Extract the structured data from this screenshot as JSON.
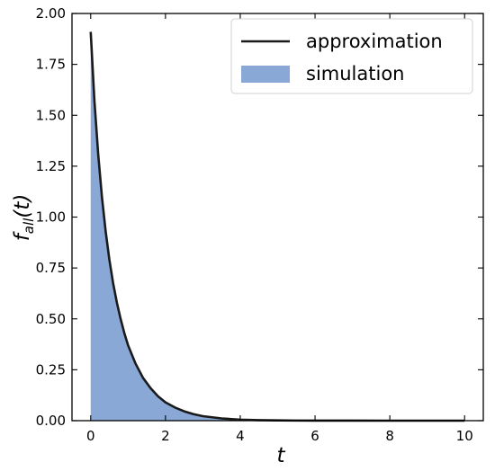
{
  "chart_data": {
    "type": "area",
    "xlabel": "t",
    "ylabel": {
      "main": "f",
      "sub": "all",
      "rest": "(t)"
    },
    "xlim": [
      -0.5,
      10.5
    ],
    "ylim": [
      0,
      2.0
    ],
    "xticks": [
      "0",
      "2",
      "4",
      "6",
      "8",
      "10"
    ],
    "xtick_values": [
      0,
      2,
      4,
      6,
      8,
      10
    ],
    "yticks": [
      "0.00",
      "0.25",
      "0.50",
      "0.75",
      "1.00",
      "1.25",
      "1.50",
      "1.75",
      "2.00"
    ],
    "ytick_values": [
      0,
      0.25,
      0.5,
      0.75,
      1.0,
      1.25,
      1.5,
      1.75,
      2.0
    ],
    "legend_position": "top-right",
    "series": [
      {
        "name": "approximation",
        "kind": "line",
        "color": "#1a1a1a",
        "x": [
          0,
          0.1,
          0.2,
          0.3,
          0.4,
          0.5,
          0.6,
          0.7,
          0.8,
          0.9,
          1.0,
          1.2,
          1.4,
          1.6,
          1.8,
          2.0,
          2.25,
          2.5,
          2.75,
          3.0,
          3.5,
          4.0,
          4.5,
          5.0,
          5.5,
          6.0,
          7.0,
          8.0,
          9.0,
          10.0
        ],
        "y": [
          1.91,
          1.57,
          1.31,
          1.1,
          0.93,
          0.79,
          0.675,
          0.58,
          0.5,
          0.43,
          0.37,
          0.28,
          0.21,
          0.16,
          0.12,
          0.09,
          0.065,
          0.046,
          0.032,
          0.022,
          0.011,
          0.005,
          0.0025,
          0.0012,
          0.0006,
          0.0003,
          0.0001,
          0,
          0,
          0
        ]
      },
      {
        "name": "simulation",
        "kind": "histogram",
        "color": "#8aa8d6",
        "x": [
          0,
          0.1,
          0.2,
          0.3,
          0.4,
          0.5,
          0.6,
          0.7,
          0.8,
          0.9,
          1.0,
          1.2,
          1.4,
          1.6,
          1.8,
          2.0,
          2.25,
          2.5,
          2.75,
          3.0,
          3.5,
          4.0,
          4.5,
          5.0,
          5.5,
          6.0,
          7.0,
          8.0,
          9.0,
          10.0
        ],
        "y": [
          1.88,
          1.55,
          1.3,
          1.09,
          0.92,
          0.785,
          0.67,
          0.575,
          0.495,
          0.425,
          0.365,
          0.275,
          0.208,
          0.158,
          0.118,
          0.088,
          0.063,
          0.045,
          0.031,
          0.021,
          0.0105,
          0.0048,
          0.0024,
          0.0011,
          0.0005,
          0.0002,
          0.0001,
          0,
          0,
          0
        ]
      }
    ]
  }
}
